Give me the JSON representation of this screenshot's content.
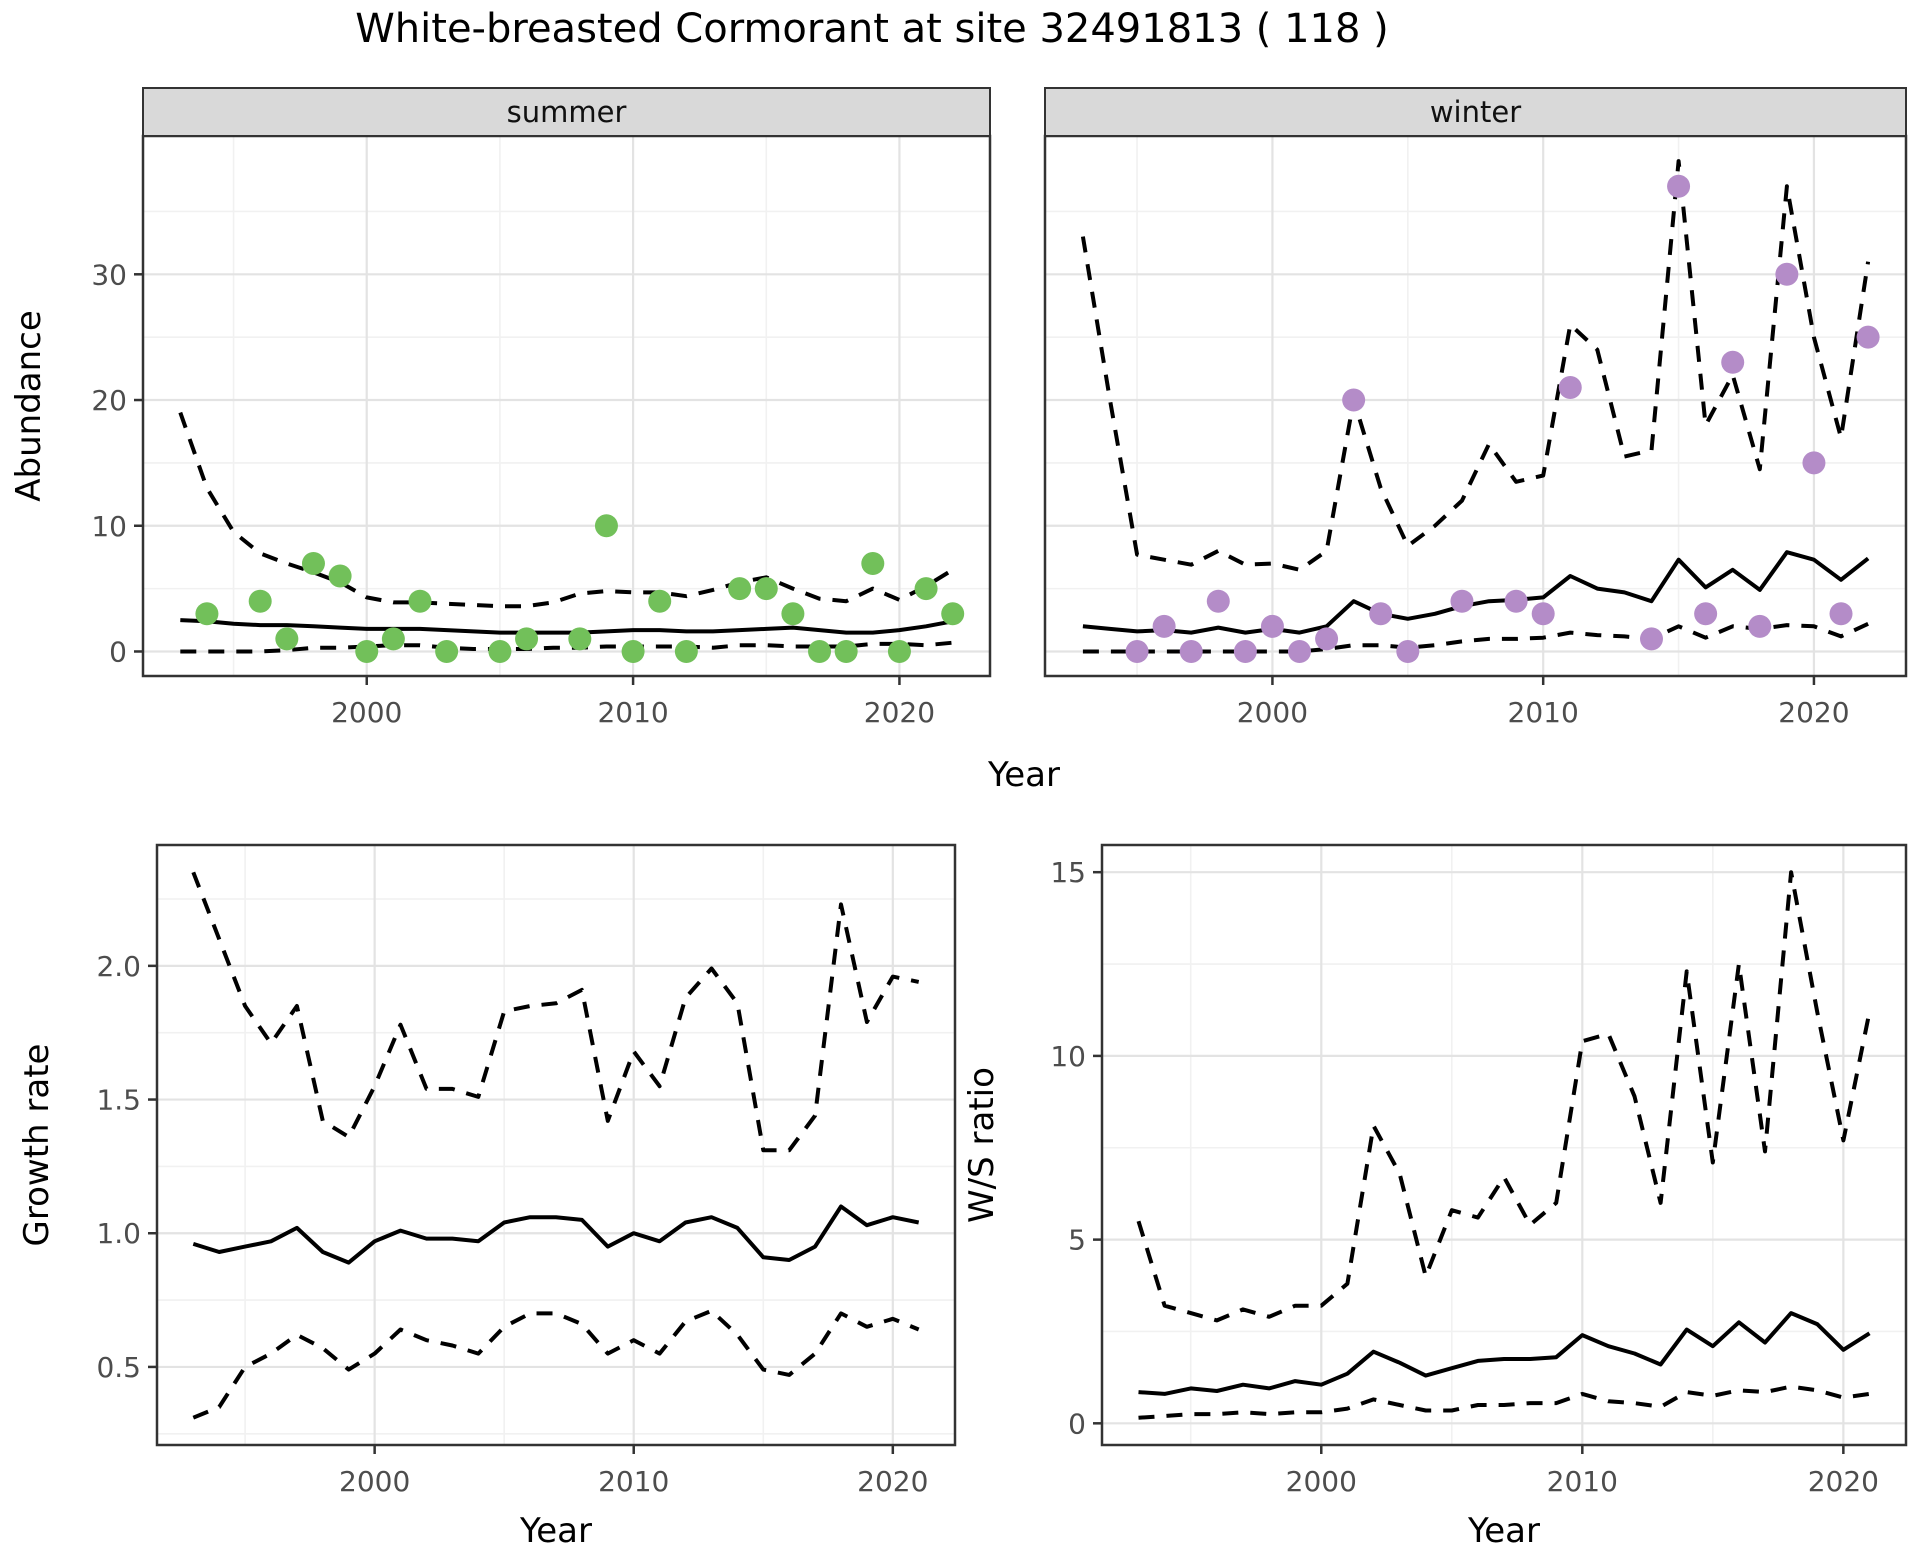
{
  "title": "White-breasted Cormorant at site 32491813 ( 118 )",
  "colors": {
    "summer_points": "#72C05A",
    "winter_points": "#B48CC8",
    "line": "#000000",
    "strip_fill": "#D9D9D9",
    "panel_border": "#333333",
    "grid_major": "#E3E3E3",
    "grid_minor": "#F1F1F1",
    "tick_text": "#4d4d4d"
  },
  "chart_data": [
    {
      "id": "abundance-summer",
      "type": "line+scatter",
      "facet_label": "summer",
      "xlabel": "Year",
      "ylabel": "Abundance",
      "xlim": [
        1991.6,
        2023.4
      ],
      "ylim": [
        -1.95,
        41.0
      ],
      "x_ticks": [
        2000,
        2010,
        2020
      ],
      "x_tick_labels": [
        "2000",
        "2010",
        "2020"
      ],
      "x_minor": [
        1995,
        2005,
        2015
      ],
      "y_ticks": [
        0,
        10,
        20,
        30
      ],
      "y_tick_labels": [
        "0",
        "10",
        "20",
        "30"
      ],
      "y_minor": [
        5,
        15,
        25,
        35
      ],
      "grid": true,
      "legend_position": "none",
      "years": [
        1993,
        1994,
        1995,
        1996,
        1997,
        1998,
        1999,
        2000,
        2001,
        2002,
        2003,
        2004,
        2005,
        2006,
        2007,
        2008,
        2009,
        2010,
        2011,
        2012,
        2013,
        2014,
        2015,
        2016,
        2017,
        2018,
        2019,
        2020,
        2021,
        2022
      ],
      "series": [
        {
          "name": "median",
          "style": "solid",
          "values": [
            2.5,
            2.4,
            2.2,
            2.1,
            2.1,
            2.0,
            1.9,
            1.8,
            1.8,
            1.8,
            1.7,
            1.6,
            1.5,
            1.5,
            1.5,
            1.5,
            1.6,
            1.7,
            1.7,
            1.6,
            1.6,
            1.7,
            1.8,
            1.9,
            1.7,
            1.5,
            1.5,
            1.7,
            2.0,
            2.4
          ]
        },
        {
          "name": "ci_high",
          "style": "dashed",
          "values": [
            19,
            13,
            9.5,
            7.8,
            7.0,
            6.3,
            5.5,
            4.3,
            3.9,
            3.9,
            3.8,
            3.7,
            3.6,
            3.6,
            3.9,
            4.6,
            4.8,
            4.7,
            4.7,
            4.4,
            4.9,
            5.5,
            5.9,
            5.0,
            4.2,
            4.0,
            5.0,
            4.1,
            5.2,
            6.5
          ]
        },
        {
          "name": "ci_low",
          "style": "dashed",
          "values": [
            0,
            0,
            0,
            0,
            0.1,
            0.3,
            0.3,
            0.4,
            0.5,
            0.5,
            0.3,
            0.2,
            0.2,
            0.2,
            0.3,
            0.3,
            0.4,
            0.4,
            0.4,
            0.4,
            0.3,
            0.5,
            0.5,
            0.4,
            0.4,
            0.4,
            0.6,
            0.6,
            0.5,
            0.7
          ]
        }
      ],
      "points": {
        "name": "observed-counts-summer",
        "color": "#72C05A",
        "x": [
          1994,
          1996,
          1997,
          1998,
          1999,
          2000,
          2001,
          2002,
          2003,
          2005,
          2006,
          2008,
          2009,
          2010,
          2011,
          2012,
          2014,
          2015,
          2016,
          2017,
          2018,
          2019,
          2020,
          2021,
          2022
        ],
        "y": [
          3,
          4,
          1,
          7,
          6,
          0,
          1,
          4,
          0,
          0,
          1,
          1,
          10,
          0,
          4,
          0,
          5,
          5,
          3,
          0,
          0,
          7,
          0,
          5,
          3
        ]
      }
    },
    {
      "id": "abundance-winter",
      "type": "line+scatter",
      "facet_label": "winter",
      "xlabel": "Year",
      "ylabel": "Abundance",
      "xlim": [
        1991.6,
        2023.4
      ],
      "ylim": [
        -1.95,
        41.0
      ],
      "x_ticks": [
        2000,
        2010,
        2020
      ],
      "x_tick_labels": [
        "2000",
        "2010",
        "2020"
      ],
      "x_minor": [
        1995,
        2005,
        2015
      ],
      "y_ticks": [
        0,
        10,
        20,
        30
      ],
      "y_tick_labels": [
        "0",
        "10",
        "20",
        "30"
      ],
      "y_minor": [
        5,
        15,
        25,
        35
      ],
      "grid": true,
      "legend_position": "none",
      "years": [
        1993,
        1994,
        1995,
        1996,
        1997,
        1998,
        1999,
        2000,
        2001,
        2002,
        2003,
        2004,
        2005,
        2006,
        2007,
        2008,
        2009,
        2010,
        2011,
        2012,
        2013,
        2014,
        2015,
        2016,
        2017,
        2018,
        2019,
        2020,
        2021,
        2022
      ],
      "series": [
        {
          "name": "median",
          "style": "solid",
          "values": [
            2.0,
            1.8,
            1.6,
            1.7,
            1.5,
            1.9,
            1.5,
            1.8,
            1.5,
            2.0,
            4.0,
            3.0,
            2.6,
            3.0,
            3.6,
            4.0,
            4.1,
            4.3,
            6.0,
            5.0,
            4.7,
            4.0,
            7.3,
            5.1,
            6.5,
            4.9,
            7.9,
            7.3,
            5.7,
            7.4
          ]
        },
        {
          "name": "ci_high",
          "style": "dashed",
          "values": [
            33,
            20,
            7.7,
            7.3,
            6.9,
            8.0,
            6.9,
            7.0,
            6.5,
            8.0,
            20,
            13,
            8.4,
            10,
            12,
            16.5,
            13.5,
            14,
            26,
            24,
            15.5,
            16,
            39,
            18,
            22,
            14.5,
            37,
            25,
            17,
            31
          ]
        },
        {
          "name": "ci_low",
          "style": "dashed",
          "values": [
            0,
            0,
            0,
            0,
            0,
            0,
            0,
            0,
            0,
            0.2,
            0.5,
            0.5,
            0.3,
            0.5,
            0.8,
            1.0,
            1.0,
            1.1,
            1.5,
            1.3,
            1.2,
            1.0,
            2.0,
            1.1,
            2.0,
            1.8,
            2.1,
            2.0,
            1.2,
            2.2
          ]
        }
      ],
      "points": {
        "name": "observed-counts-winter",
        "color": "#B48CC8",
        "x": [
          1995,
          1996,
          1997,
          1998,
          1999,
          2000,
          2001,
          2002,
          2003,
          2004,
          2005,
          2007,
          2009,
          2010,
          2011,
          2014,
          2015,
          2016,
          2017,
          2018,
          2019,
          2020,
          2021,
          2022
        ],
        "y": [
          0,
          2,
          0,
          4,
          0,
          2,
          0,
          1,
          20,
          3,
          0,
          4,
          4,
          3,
          21,
          1,
          37,
          3,
          23,
          2,
          30,
          15,
          3,
          25
        ]
      }
    },
    {
      "id": "growth-rate",
      "type": "line",
      "facet_label": null,
      "xlabel": "Year",
      "ylabel": "Growth rate",
      "xlim": [
        1991.6,
        2022.4
      ],
      "ylim": [
        0.208,
        2.452
      ],
      "x_ticks": [
        2000,
        2010,
        2020
      ],
      "x_tick_labels": [
        "2000",
        "2010",
        "2020"
      ],
      "x_minor": [
        1995,
        2005,
        2015
      ],
      "y_ticks": [
        0.5,
        1.0,
        1.5,
        2.0
      ],
      "y_tick_labels": [
        "0.5",
        "1.0",
        "1.5",
        "2.0"
      ],
      "y_minor": [
        0.25,
        0.75,
        1.25,
        1.75,
        2.25
      ],
      "grid": true,
      "legend_position": "none",
      "years": [
        1993,
        1994,
        1995,
        1996,
        1997,
        1998,
        1999,
        2000,
        2001,
        2002,
        2003,
        2004,
        2005,
        2006,
        2007,
        2008,
        2009,
        2010,
        2011,
        2012,
        2013,
        2014,
        2015,
        2016,
        2017,
        2018,
        2019,
        2020,
        2021
      ],
      "series": [
        {
          "name": "median",
          "style": "solid",
          "values": [
            0.96,
            0.93,
            0.95,
            0.97,
            1.02,
            0.93,
            0.89,
            0.97,
            1.01,
            0.98,
            0.98,
            0.97,
            1.04,
            1.06,
            1.06,
            1.05,
            0.95,
            1.0,
            0.97,
            1.04,
            1.06,
            1.02,
            0.91,
            0.9,
            0.95,
            1.1,
            1.03,
            1.06,
            1.04
          ]
        },
        {
          "name": "ci_high",
          "style": "dashed",
          "values": [
            2.35,
            2.1,
            1.85,
            1.71,
            1.85,
            1.42,
            1.36,
            1.55,
            1.78,
            1.54,
            1.54,
            1.51,
            1.83,
            1.85,
            1.86,
            1.91,
            1.42,
            1.68,
            1.55,
            1.88,
            1.99,
            1.86,
            1.31,
            1.31,
            1.44,
            2.23,
            1.79,
            1.96,
            1.94
          ]
        },
        {
          "name": "ci_low",
          "style": "dashed",
          "values": [
            0.31,
            0.35,
            0.5,
            0.55,
            0.62,
            0.57,
            0.49,
            0.55,
            0.64,
            0.6,
            0.58,
            0.55,
            0.65,
            0.7,
            0.7,
            0.66,
            0.55,
            0.6,
            0.55,
            0.67,
            0.71,
            0.62,
            0.49,
            0.47,
            0.55,
            0.7,
            0.65,
            0.68,
            0.64
          ]
        }
      ],
      "points": null
    },
    {
      "id": "ws-ratio",
      "type": "line",
      "facet_label": null,
      "xlabel": "Year",
      "ylabel": "W/S ratio",
      "xlim": [
        1991.6,
        2022.4
      ],
      "ylim": [
        -0.59,
        15.74
      ],
      "x_ticks": [
        2000,
        2010,
        2020
      ],
      "x_tick_labels": [
        "2000",
        "2010",
        "2020"
      ],
      "x_minor": [
        1995,
        2005,
        2015
      ],
      "y_ticks": [
        0,
        5,
        10,
        15
      ],
      "y_tick_labels": [
        "0",
        "5",
        "10",
        "15"
      ],
      "y_minor": [
        2.5,
        7.5,
        12.5
      ],
      "grid": true,
      "legend_position": "none",
      "years": [
        1993,
        1994,
        1995,
        1996,
        1997,
        1998,
        1999,
        2000,
        2001,
        2002,
        2003,
        2004,
        2005,
        2006,
        2007,
        2008,
        2009,
        2010,
        2011,
        2012,
        2013,
        2014,
        2015,
        2016,
        2017,
        2018,
        2019,
        2020,
        2021
      ],
      "series": [
        {
          "name": "median",
          "style": "solid",
          "values": [
            0.85,
            0.8,
            0.95,
            0.88,
            1.05,
            0.95,
            1.15,
            1.05,
            1.35,
            1.95,
            1.65,
            1.3,
            1.5,
            1.7,
            1.75,
            1.75,
            1.8,
            2.4,
            2.1,
            1.9,
            1.6,
            2.55,
            2.1,
            2.75,
            2.2,
            3.0,
            2.7,
            2.0,
            2.45
          ]
        },
        {
          "name": "ci_high",
          "style": "dashed",
          "values": [
            5.5,
            3.2,
            3.0,
            2.8,
            3.1,
            2.9,
            3.2,
            3.2,
            3.8,
            8.1,
            6.8,
            4.0,
            5.8,
            5.6,
            6.7,
            5.4,
            6.0,
            10.4,
            10.6,
            8.9,
            6.0,
            12.3,
            7.1,
            12.5,
            7.4,
            15.0,
            11.2,
            7.7,
            11.2
          ]
        },
        {
          "name": "ci_low",
          "style": "dashed",
          "values": [
            0.15,
            0.2,
            0.25,
            0.25,
            0.3,
            0.25,
            0.3,
            0.3,
            0.4,
            0.65,
            0.5,
            0.35,
            0.35,
            0.5,
            0.5,
            0.55,
            0.55,
            0.8,
            0.6,
            0.55,
            0.45,
            0.85,
            0.75,
            0.9,
            0.85,
            1.0,
            0.9,
            0.7,
            0.8
          ]
        }
      ],
      "points": null
    }
  ]
}
